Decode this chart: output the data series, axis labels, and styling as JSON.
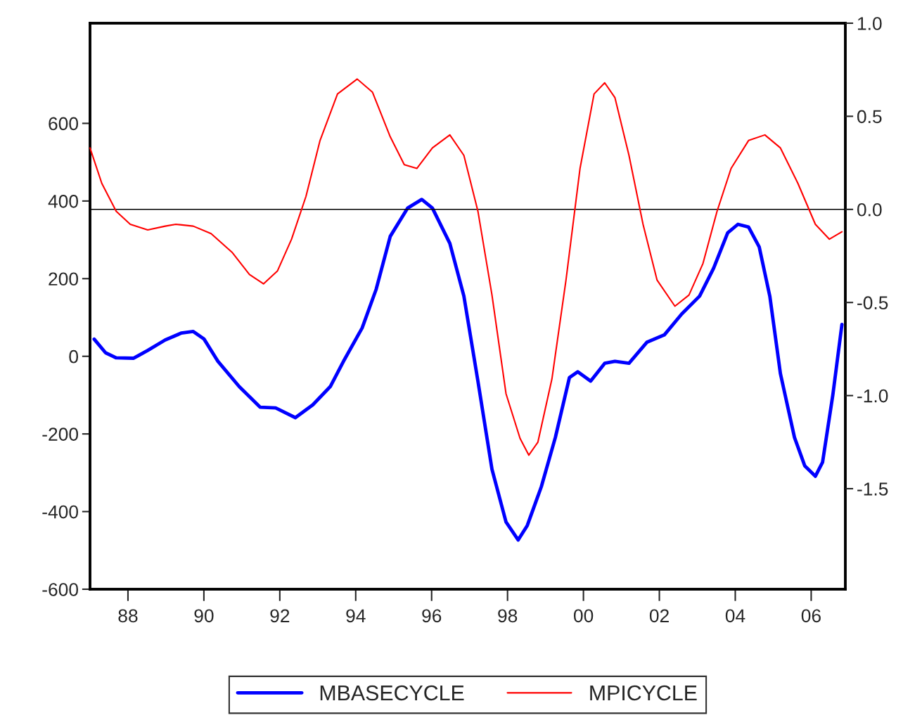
{
  "chart_data": {
    "type": "line",
    "xlim": [
      1987.0,
      2006.9
    ],
    "xticks": [
      {
        "value": 1988,
        "label": "88"
      },
      {
        "value": 1990,
        "label": "90"
      },
      {
        "value": 1992,
        "label": "92"
      },
      {
        "value": 1994,
        "label": "94"
      },
      {
        "value": 1996,
        "label": "96"
      },
      {
        "value": 1998,
        "label": "98"
      },
      {
        "value": 2000,
        "label": "00"
      },
      {
        "value": 2002,
        "label": "02"
      },
      {
        "value": 2004,
        "label": "04"
      },
      {
        "value": 2006,
        "label": "06"
      }
    ],
    "ylim": [
      -600,
      858
    ],
    "yticks": [
      -600,
      -400,
      -200,
      0,
      200,
      400,
      600
    ],
    "y2lim": [
      -2.04,
      1.0
    ],
    "y2ticks": [
      -1.5,
      {
        "value": -1,
        "label": "-1.0"
      },
      -0.5,
      {
        "value": 0,
        "label": "0.0"
      },
      0.5,
      {
        "value": 1,
        "label": "1.0"
      }
    ],
    "ref_lines": [
      {
        "axis": "y2",
        "value": 0,
        "color": "#000000"
      }
    ],
    "grid": false,
    "legend": "bottom",
    "line_style": "solid",
    "marker": "none",
    "series": [
      {
        "name": "MBASECYCLE",
        "color": "#0000ff",
        "x": [
          1987.11,
          1987.41,
          1987.69,
          1988.15,
          1988.52,
          1988.98,
          1989.41,
          1989.72,
          1990.0,
          1990.37,
          1990.93,
          1991.48,
          1991.89,
          1992.41,
          1992.87,
          1993.33,
          1993.7,
          1994.17,
          1994.54,
          1994.91,
          1995.37,
          1995.74,
          1996.02,
          1996.48,
          1996.85,
          1997.22,
          1997.59,
          1997.96,
          1998.28,
          1998.52,
          1998.89,
          1999.26,
          1999.63,
          1999.85,
          2000.19,
          2000.56,
          2000.83,
          2001.2,
          2001.67,
          2002.13,
          2002.59,
          2003.06,
          2003.43,
          2003.8,
          2004.07,
          2004.35,
          2004.63,
          2004.91,
          2005.19,
          2005.56,
          2005.83,
          2006.11,
          2006.3,
          2006.57,
          2006.81
        ],
        "values": [
          44,
          9,
          -4,
          -5,
          15,
          42,
          60,
          64,
          45,
          -13,
          -78,
          -131,
          -133,
          -158,
          -125,
          -78,
          -9,
          73,
          173,
          309,
          382,
          404,
          382,
          291,
          155,
          -64,
          -291,
          -427,
          -473,
          -436,
          -336,
          -209,
          -55,
          -40,
          -64,
          -18,
          -13,
          -18,
          36,
          55,
          109,
          155,
          227,
          318,
          340,
          333,
          282,
          155,
          -45,
          -209,
          -282,
          -309,
          -273,
          -100,
          82
        ]
      },
      {
        "name": "MPICYCLE",
        "color": "#ff0000",
        "axis": "y2",
        "x": [
          1987.0,
          1987.31,
          1987.69,
          1988.06,
          1988.52,
          1988.98,
          1989.26,
          1989.72,
          1990.19,
          1990.74,
          1991.2,
          1991.57,
          1991.94,
          1992.31,
          1992.69,
          1993.06,
          1993.52,
          1994.04,
          1994.44,
          1994.91,
          1995.28,
          1995.61,
          1996.02,
          1996.48,
          1996.85,
          1997.22,
          1997.59,
          1997.96,
          1998.33,
          1998.56,
          1998.8,
          1999.17,
          1999.54,
          1999.91,
          2000.28,
          2000.56,
          2000.83,
          2001.2,
          2001.57,
          2001.94,
          2002.41,
          2002.78,
          2003.15,
          2003.52,
          2003.89,
          2004.35,
          2004.78,
          2005.19,
          2005.65,
          2006.11,
          2006.48,
          2006.81
        ],
        "values": [
          0.33,
          0.14,
          -0.01,
          -0.08,
          -0.11,
          -0.09,
          -0.08,
          -0.09,
          -0.13,
          -0.23,
          -0.35,
          -0.4,
          -0.33,
          -0.16,
          0.07,
          0.37,
          0.62,
          0.7,
          0.63,
          0.39,
          0.24,
          0.22,
          0.33,
          0.4,
          0.29,
          -0.01,
          -0.46,
          -0.99,
          -1.23,
          -1.32,
          -1.25,
          -0.91,
          -0.38,
          0.22,
          0.62,
          0.68,
          0.6,
          0.29,
          -0.08,
          -0.38,
          -0.52,
          -0.46,
          -0.29,
          -0.01,
          0.22,
          0.37,
          0.4,
          0.33,
          0.14,
          -0.08,
          -0.16,
          -0.12
        ]
      }
    ]
  }
}
